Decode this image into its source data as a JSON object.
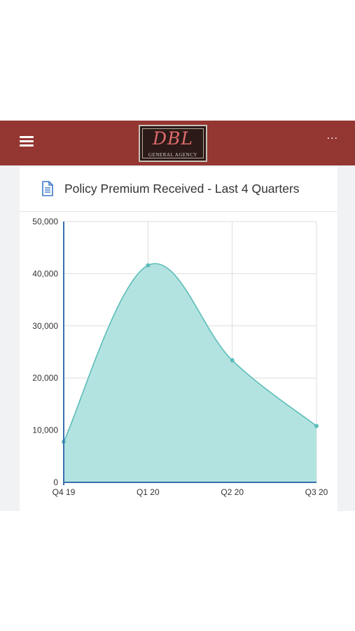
{
  "header": {
    "background": "#943631",
    "logo": {
      "mark": "DBL",
      "subtitle": "GENERAL AGENCY"
    },
    "menu_icon": "hamburger-menu-icon",
    "more_label": "···"
  },
  "card": {
    "title": "Policy Premium Received - Last 4 Quarters",
    "icon": "document-icon",
    "icon_color": "#3a77c8"
  },
  "chart_data": {
    "type": "area",
    "title": "Policy Premium Received - Last 4 Quarters",
    "categories": [
      "Q4 19",
      "Q1 20",
      "Q2 20",
      "Q3 20"
    ],
    "series": [
      {
        "values": [
          7800,
          41600,
          23400,
          10800
        ],
        "color": "#b3e3e1",
        "line_color": "#5bbdb9"
      }
    ],
    "ylim": [
      0,
      50000
    ],
    "yticks": [
      0,
      10000,
      20000,
      30000,
      40000,
      50000
    ],
    "ytick_labels": [
      "0",
      "10,000",
      "20,000",
      "30,000",
      "40,000",
      "50,000"
    ],
    "grid": true,
    "smooth": true
  }
}
